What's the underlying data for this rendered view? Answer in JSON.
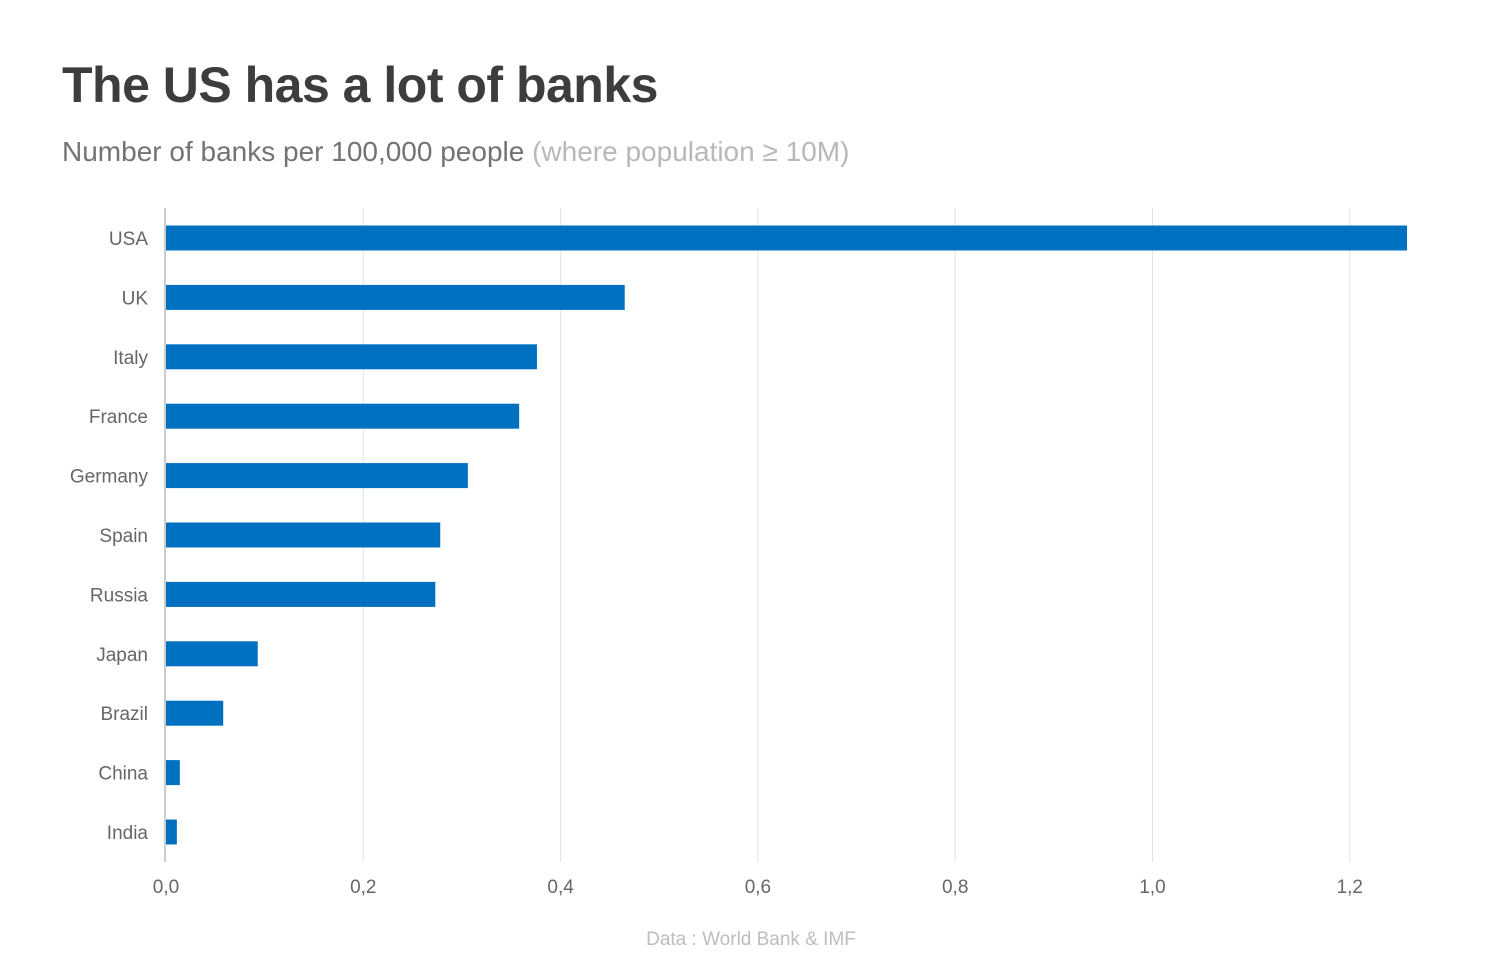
{
  "title": "The US has a lot of banks",
  "subtitle": {
    "main": "Number of banks per 100,000 people",
    "note": "(where population ≥ 10M)"
  },
  "source": "Data : World Bank & IMF",
  "colors": {
    "bar": "#0070c0",
    "grid": "#e3e3e3",
    "axis": "#cccccc",
    "label": "#666666"
  },
  "chart_data": {
    "type": "bar",
    "orientation": "horizontal",
    "categories": [
      "USA",
      "UK",
      "Italy",
      "France",
      "Germany",
      "Spain",
      "Russia",
      "Japan",
      "Brazil",
      "China",
      "India"
    ],
    "values": [
      1.258,
      0.465,
      0.376,
      0.358,
      0.306,
      0.278,
      0.273,
      0.093,
      0.058,
      0.014,
      0.011
    ],
    "xlim": [
      0,
      1.3
    ],
    "xticks": [
      0,
      0.2,
      0.4,
      0.6,
      0.8,
      1.0,
      1.2
    ],
    "xtick_labels": [
      "0,0",
      "0,2",
      "0,4",
      "0,6",
      "0,8",
      "1,0",
      "1,2"
    ],
    "title": "The US has a lot of banks",
    "xlabel": "",
    "ylabel": "",
    "grid": "vertical",
    "legend": "none"
  }
}
